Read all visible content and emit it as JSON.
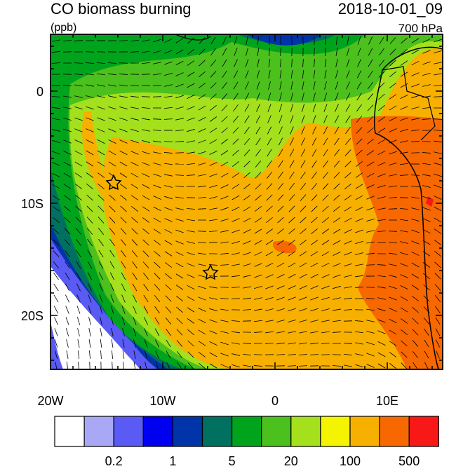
{
  "header": {
    "title": "CO biomass burning",
    "units": "(ppb)",
    "time": "2018-10-01_09",
    "level": "700 hPa"
  },
  "map": {
    "x_labels": [
      "20W",
      "10W",
      "0",
      "10E"
    ],
    "y_labels": [
      "0",
      "10S",
      "20S"
    ]
  },
  "colorbar": {
    "colors": [
      "#ffffff",
      "#a8a8f4",
      "#5a5af4",
      "#0000f0",
      "#0034a8",
      "#007060",
      "#00a41c",
      "#4cc01c",
      "#a4e01c",
      "#f4f400",
      "#f8b000",
      "#f86800",
      "#f81818"
    ],
    "labels": [
      "0.2",
      "1",
      "5",
      "20",
      "100",
      "500"
    ]
  }
}
